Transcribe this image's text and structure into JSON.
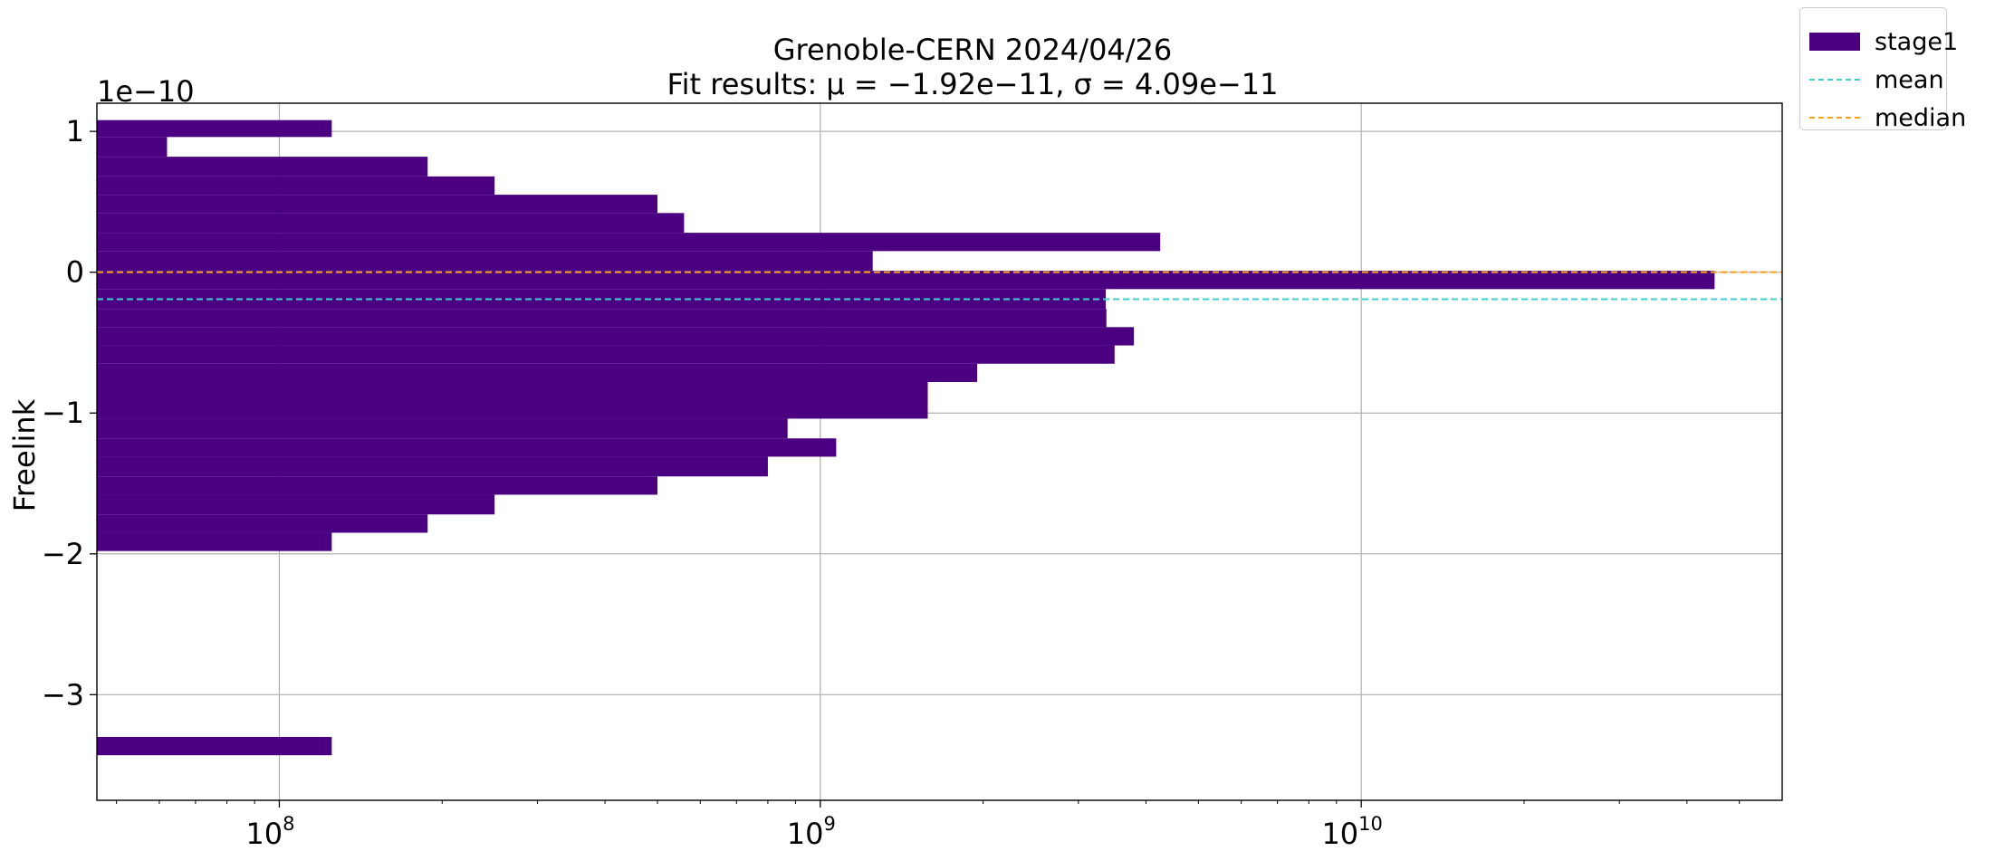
{
  "chart_data": {
    "type": "bar",
    "orientation": "horizontal",
    "title": "Grenoble-CERN 2024/04/26",
    "subtitle": "Fit results: μ = −1.92e−11,  σ = 4.09e−11",
    "xlabel": "",
    "ylabel": "Freelink",
    "y_offset_label": "1e−10",
    "x_scale": "log",
    "xlim": [
      46000000,
      60000000000
    ],
    "ylim": [
      -3.75e-10,
      1.2e-10
    ],
    "grid": true,
    "legend_position": "outside top-right",
    "x_ticks": [
      {
        "value": 100000000,
        "base": "10",
        "exp": "8"
      },
      {
        "value": 1000000000,
        "base": "10",
        "exp": "9"
      },
      {
        "value": 10000000000,
        "base": "10",
        "exp": "10"
      }
    ],
    "y_ticks": [
      {
        "value": 1e-10,
        "label": "1"
      },
      {
        "value": 0,
        "label": "0"
      },
      {
        "value": -1e-10,
        "label": "−1"
      },
      {
        "value": -2e-10,
        "label": "−2"
      },
      {
        "value": -3e-10,
        "label": "−3"
      }
    ],
    "series": [
      {
        "name": "stage1",
        "color": "#4b0082",
        "bins": [
          {
            "y0": 9.6e-11,
            "y1": 1.08e-10,
            "value": 125000000
          },
          {
            "y0": 8.2e-11,
            "y1": 9.6e-11,
            "value": 62000000
          },
          {
            "y0": 6.8e-11,
            "y1": 8.2e-11,
            "value": 188000000
          },
          {
            "y0": 5.5e-11,
            "y1": 6.8e-11,
            "value": 250000000
          },
          {
            "y0": 4.2e-11,
            "y1": 5.5e-11,
            "value": 500000000
          },
          {
            "y0": 2.8e-11,
            "y1": 4.2e-11,
            "value": 560000000
          },
          {
            "y0": 1.5e-11,
            "y1": 2.8e-11,
            "value": 4250000000
          },
          {
            "y0": 1e-12,
            "y1": 1.5e-11,
            "value": 1250000000
          },
          {
            "y0": -1.2e-11,
            "y1": 1e-12,
            "value": 45000000000
          },
          {
            "y0": -2.6e-11,
            "y1": -1.2e-11,
            "value": 3370000000
          },
          {
            "y0": -3.9e-11,
            "y1": -2.6e-11,
            "value": 3380000000
          },
          {
            "y0": -5.2e-11,
            "y1": -3.9e-11,
            "value": 3800000000
          },
          {
            "y0": -6.5e-11,
            "y1": -5.2e-11,
            "value": 3500000000
          },
          {
            "y0": -7.8e-11,
            "y1": -6.5e-11,
            "value": 1950000000
          },
          {
            "y0": -1.04e-10,
            "y1": -7.8e-11,
            "value": 1580000000
          },
          {
            "y0": -1.18e-10,
            "y1": -1.04e-10,
            "value": 870000000
          },
          {
            "y0": -1.31e-10,
            "y1": -1.18e-10,
            "value": 1070000000
          },
          {
            "y0": -1.45e-10,
            "y1": -1.31e-10,
            "value": 800000000
          },
          {
            "y0": -1.58e-10,
            "y1": -1.45e-10,
            "value": 500000000
          },
          {
            "y0": -1.72e-10,
            "y1": -1.58e-10,
            "value": 250000000
          },
          {
            "y0": -1.85e-10,
            "y1": -1.72e-10,
            "value": 188000000
          },
          {
            "y0": -1.98e-10,
            "y1": -1.85e-10,
            "value": 125000000
          },
          {
            "y0": -3.43e-10,
            "y1": -3.3e-10,
            "value": 125000000
          }
        ]
      }
    ],
    "reference_lines": [
      {
        "name": "mean",
        "value": -1.92e-11,
        "color": "#3fd0d4",
        "style": "dashed"
      },
      {
        "name": "median",
        "value": 0.0,
        "color": "#ff9f1c",
        "style": "dashed"
      }
    ]
  },
  "legend": {
    "items": [
      {
        "label": "stage1",
        "kind": "patch",
        "color": "#4b0082"
      },
      {
        "label": "mean",
        "kind": "line",
        "color": "#3fd0d4"
      },
      {
        "label": "median",
        "kind": "line",
        "color": "#ff9f1c"
      }
    ]
  }
}
